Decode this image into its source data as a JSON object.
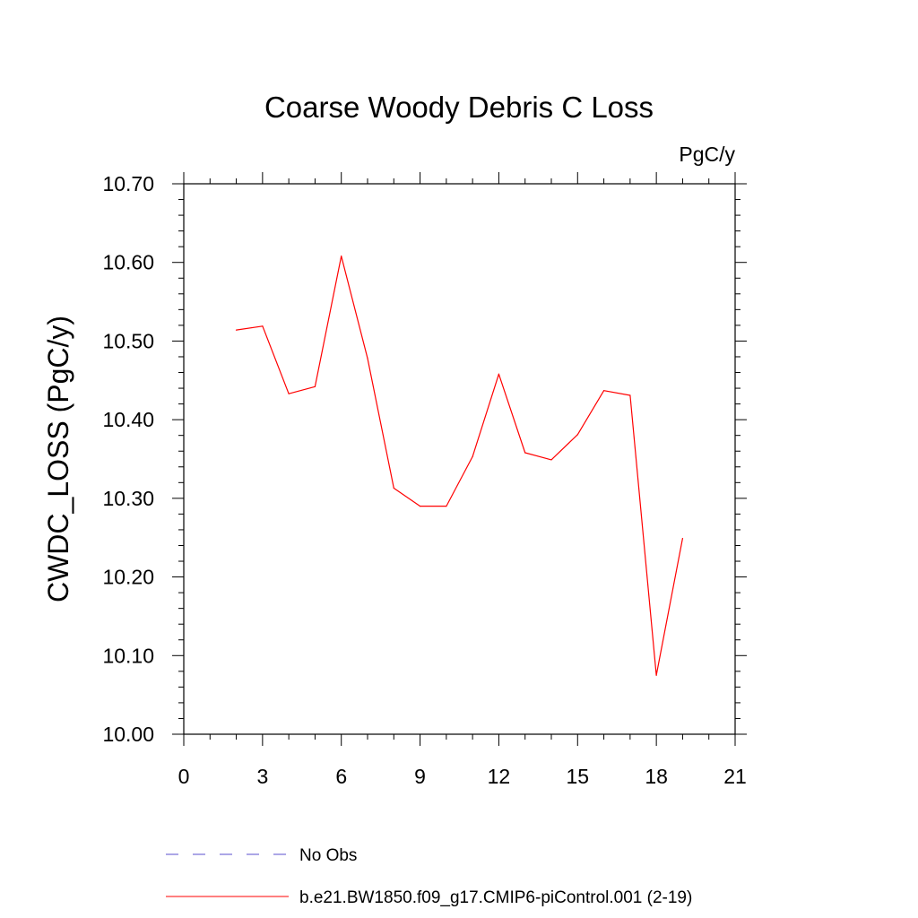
{
  "chart_data": {
    "type": "line",
    "title": "Coarse Woody Debris C Loss",
    "units_label": "PgC/y",
    "ylabel": "CWDC_LOSS  (PgC/y)",
    "xlabel": "",
    "xlim": [
      0,
      21
    ],
    "ylim": [
      10.0,
      10.7
    ],
    "xticks": [
      0,
      3,
      6,
      9,
      12,
      15,
      18,
      21
    ],
    "yticks": [
      10.0,
      10.1,
      10.2,
      10.3,
      10.4,
      10.5,
      10.6,
      10.7
    ],
    "ytick_labels": [
      "10.00",
      "10.10",
      "10.20",
      "10.30",
      "10.40",
      "10.50",
      "10.60",
      "10.70"
    ],
    "grid": false,
    "legend_position": "bottom",
    "series": [
      {
        "name": "b.e21.BW1850.f09_g17.CMIP6-piControl.001 (2-19)",
        "color": "#ff0000",
        "dash": "solid",
        "x": [
          2,
          3,
          4,
          5,
          6,
          7,
          8,
          9,
          10,
          11,
          12,
          13,
          14,
          15,
          16,
          17,
          18,
          19
        ],
        "y": [
          10.514,
          10.519,
          10.433,
          10.442,
          10.608,
          10.478,
          10.313,
          10.29,
          10.29,
          10.353,
          10.458,
          10.358,
          10.349,
          10.381,
          10.437,
          10.431,
          10.075,
          10.249
        ]
      }
    ],
    "legend": [
      {
        "label": "No Obs",
        "color": "#5a4fcf",
        "dash": "dashed"
      },
      {
        "label": "b.e21.BW1850.f09_g17.CMIP6-piControl.001 (2-19)",
        "color": "#ff0000",
        "dash": "solid"
      }
    ]
  }
}
